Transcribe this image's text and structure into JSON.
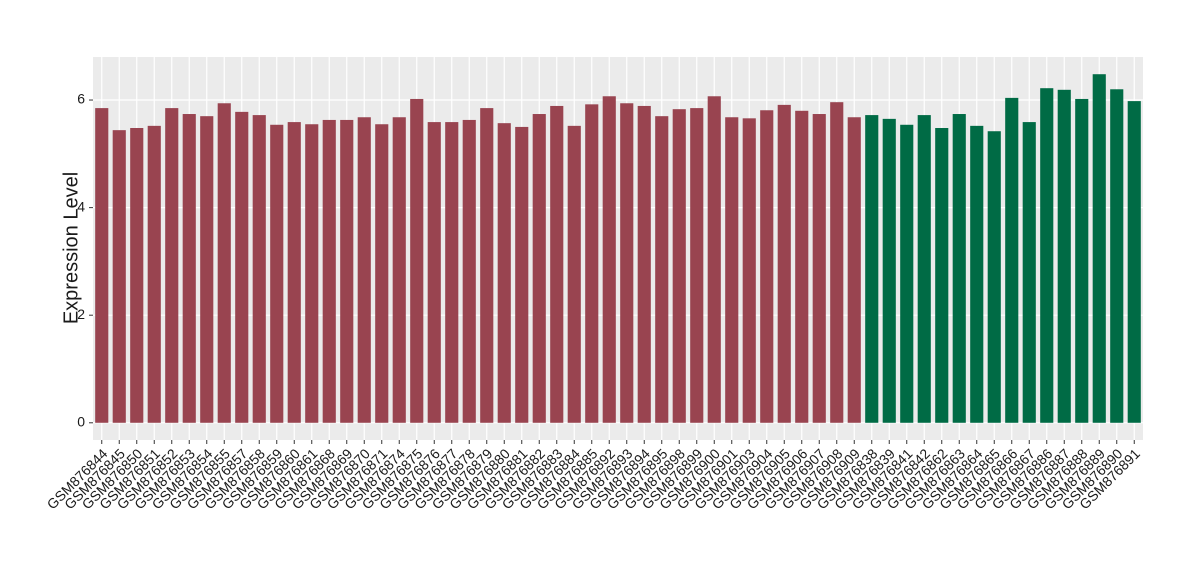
{
  "chart_data": {
    "type": "bar",
    "y_label": "Expression Level",
    "categories": [
      "GSM876844",
      "GSM876845",
      "GSM876850",
      "GSM876851",
      "GSM876852",
      "GSM876853",
      "GSM876854",
      "GSM876855",
      "GSM876857",
      "GSM876858",
      "GSM876859",
      "GSM876860",
      "GSM876861",
      "GSM876868",
      "GSM876869",
      "GSM876870",
      "GSM876871",
      "GSM876874",
      "GSM876875",
      "GSM876876",
      "GSM876877",
      "GSM876878",
      "GSM876879",
      "GSM876880",
      "GSM876881",
      "GSM876882",
      "GSM876883",
      "GSM876884",
      "GSM876885",
      "GSM876892",
      "GSM876893",
      "GSM876894",
      "GSM876895",
      "GSM876898",
      "GSM876899",
      "GSM876900",
      "GSM876901",
      "GSM876903",
      "GSM876904",
      "GSM876905",
      "GSM876906",
      "GSM876907",
      "GSM876908",
      "GSM876909",
      "GSM876838",
      "GSM876839",
      "GSM876841",
      "GSM876842",
      "GSM876862",
      "GSM876863",
      "GSM876864",
      "GSM876865",
      "GSM876866",
      "GSM876867",
      "GSM876886",
      "GSM876887",
      "GSM876888",
      "GSM876889",
      "GSM876890",
      "GSM876891"
    ],
    "series": [
      {
        "color": "#994450",
        "values": [
          5.85,
          5.44,
          5.48,
          5.52,
          5.85,
          5.74,
          5.7,
          5.94,
          5.78,
          5.72,
          5.54,
          5.59,
          5.55,
          5.63,
          5.63,
          5.68,
          5.55,
          5.68,
          6.02,
          5.59,
          5.59,
          5.63,
          5.85,
          5.57,
          5.5,
          5.74,
          5.89,
          5.52,
          5.92,
          6.07,
          5.94,
          5.89,
          5.7,
          5.83,
          5.85,
          6.07,
          5.68,
          5.66,
          5.81,
          5.91,
          5.8,
          5.74,
          5.96,
          5.68,
          null,
          null,
          null,
          null,
          null,
          null,
          null,
          null,
          null,
          null,
          null,
          null,
          null,
          null,
          null,
          null
        ]
      },
      {
        "color": "#006b45",
        "values": [
          null,
          null,
          null,
          null,
          null,
          null,
          null,
          null,
          null,
          null,
          null,
          null,
          null,
          null,
          null,
          null,
          null,
          null,
          null,
          null,
          null,
          null,
          null,
          null,
          null,
          null,
          null,
          null,
          null,
          null,
          null,
          null,
          null,
          null,
          null,
          null,
          null,
          null,
          null,
          null,
          null,
          null,
          null,
          null,
          5.72,
          5.65,
          5.54,
          5.72,
          5.48,
          5.74,
          5.52,
          5.42,
          6.04,
          5.59,
          6.22,
          6.19,
          6.02,
          6.48,
          6.2,
          5.98
        ]
      }
    ],
    "ylim": [
      -0.32,
      6.8
    ],
    "yticks": [
      0,
      2,
      4,
      6
    ],
    "grid": true
  }
}
